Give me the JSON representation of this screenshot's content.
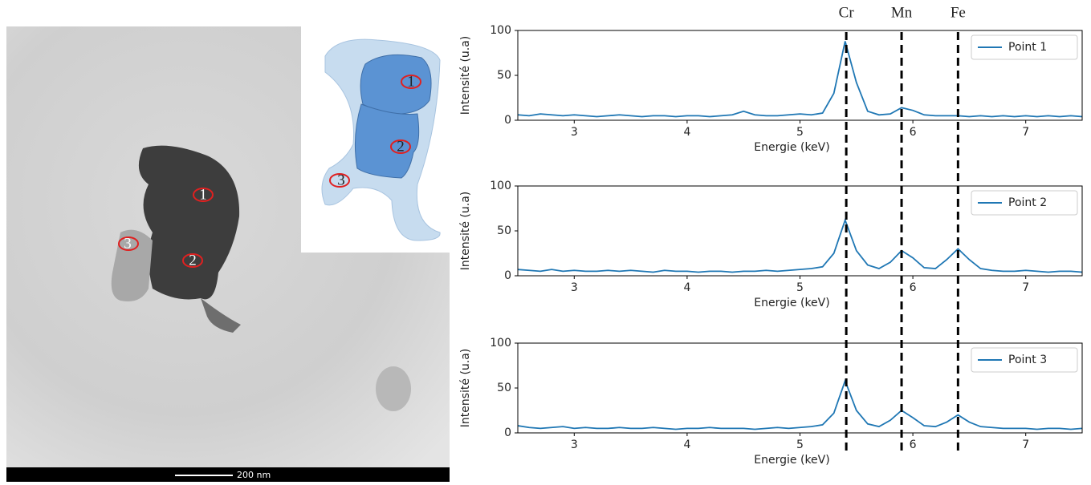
{
  "image": {
    "scale_bar": "200 nm",
    "points": [
      "1",
      "2",
      "3"
    ]
  },
  "schematic": {
    "points": [
      "1",
      "2",
      "3"
    ]
  },
  "element_lines": [
    {
      "label": "Cr",
      "x": 5.41
    },
    {
      "label": "Mn",
      "x": 5.9
    },
    {
      "label": "Fe",
      "x": 6.4
    }
  ],
  "chart_data": [
    {
      "type": "line",
      "xlabel": "Energie (keV)",
      "ylabel": "Intensité (u.a)",
      "x": [
        2.5,
        2.6,
        2.7,
        2.8,
        2.9,
        3.0,
        3.1,
        3.2,
        3.3,
        3.4,
        3.5,
        3.6,
        3.7,
        3.8,
        3.9,
        4.0,
        4.1,
        4.2,
        4.3,
        4.4,
        4.5,
        4.6,
        4.7,
        4.8,
        4.9,
        5.0,
        5.1,
        5.2,
        5.3,
        5.4,
        5.5,
        5.6,
        5.7,
        5.8,
        5.9,
        6.0,
        6.1,
        6.2,
        6.3,
        6.4,
        6.5,
        6.6,
        6.7,
        6.8,
        6.9,
        7.0,
        7.1,
        7.2,
        7.3,
        7.4,
        7.5
      ],
      "series": [
        {
          "name": "Point 1",
          "color": "#1f77b4",
          "values": [
            6,
            5,
            7,
            6,
            5,
            6,
            5,
            4,
            5,
            6,
            5,
            4,
            5,
            5,
            4,
            5,
            5,
            4,
            5,
            6,
            10,
            6,
            5,
            5,
            6,
            7,
            6,
            8,
            30,
            88,
            42,
            10,
            6,
            7,
            14,
            11,
            6,
            5,
            5,
            5,
            4,
            5,
            4,
            5,
            4,
            5,
            4,
            5,
            4,
            5,
            4
          ]
        }
      ],
      "xlim": [
        2.5,
        7.5
      ],
      "ylim": [
        0,
        100
      ],
      "xticks": [
        3,
        4,
        5,
        6,
        7
      ],
      "yticks": [
        0,
        50,
        100
      ],
      "legend": "upper right"
    },
    {
      "type": "line",
      "xlabel": "Energie (keV)",
      "ylabel": "Intensité (u.a)",
      "x": [
        2.5,
        2.6,
        2.7,
        2.8,
        2.9,
        3.0,
        3.1,
        3.2,
        3.3,
        3.4,
        3.5,
        3.6,
        3.7,
        3.8,
        3.9,
        4.0,
        4.1,
        4.2,
        4.3,
        4.4,
        4.5,
        4.6,
        4.7,
        4.8,
        4.9,
        5.0,
        5.1,
        5.2,
        5.3,
        5.4,
        5.5,
        5.6,
        5.7,
        5.8,
        5.9,
        6.0,
        6.1,
        6.2,
        6.3,
        6.4,
        6.5,
        6.6,
        6.7,
        6.8,
        6.9,
        7.0,
        7.1,
        7.2,
        7.3,
        7.4,
        7.5
      ],
      "series": [
        {
          "name": "Point 2",
          "color": "#1f77b4",
          "values": [
            7,
            6,
            5,
            7,
            5,
            6,
            5,
            5,
            6,
            5,
            6,
            5,
            4,
            6,
            5,
            5,
            4,
            5,
            5,
            4,
            5,
            5,
            6,
            5,
            6,
            7,
            8,
            10,
            25,
            62,
            28,
            12,
            8,
            15,
            28,
            20,
            9,
            8,
            18,
            30,
            18,
            8,
            6,
            5,
            5,
            6,
            5,
            4,
            5,
            5,
            4
          ]
        }
      ],
      "xlim": [
        2.5,
        7.5
      ],
      "ylim": [
        0,
        100
      ],
      "xticks": [
        3,
        4,
        5,
        6,
        7
      ],
      "yticks": [
        0,
        50,
        100
      ],
      "legend": "upper right"
    },
    {
      "type": "line",
      "xlabel": "Energie (keV)",
      "ylabel": "Intensité (u.a)",
      "x": [
        2.5,
        2.6,
        2.7,
        2.8,
        2.9,
        3.0,
        3.1,
        3.2,
        3.3,
        3.4,
        3.5,
        3.6,
        3.7,
        3.8,
        3.9,
        4.0,
        4.1,
        4.2,
        4.3,
        4.4,
        4.5,
        4.6,
        4.7,
        4.8,
        4.9,
        5.0,
        5.1,
        5.2,
        5.3,
        5.4,
        5.5,
        5.6,
        5.7,
        5.8,
        5.9,
        6.0,
        6.1,
        6.2,
        6.3,
        6.4,
        6.5,
        6.6,
        6.7,
        6.8,
        6.9,
        7.0,
        7.1,
        7.2,
        7.3,
        7.4,
        7.5
      ],
      "series": [
        {
          "name": "Point 3",
          "color": "#1f77b4",
          "values": [
            8,
            6,
            5,
            6,
            7,
            5,
            6,
            5,
            5,
            6,
            5,
            5,
            6,
            5,
            4,
            5,
            5,
            6,
            5,
            5,
            5,
            4,
            5,
            6,
            5,
            6,
            7,
            9,
            22,
            58,
            25,
            10,
            7,
            14,
            25,
            17,
            8,
            7,
            12,
            20,
            12,
            7,
            6,
            5,
            5,
            5,
            4,
            5,
            5,
            4,
            5
          ]
        }
      ],
      "xlim": [
        2.5,
        7.5
      ],
      "ylim": [
        0,
        100
      ],
      "xticks": [
        3,
        4,
        5,
        6,
        7
      ],
      "yticks": [
        0,
        50,
        100
      ],
      "legend": "upper right"
    }
  ]
}
